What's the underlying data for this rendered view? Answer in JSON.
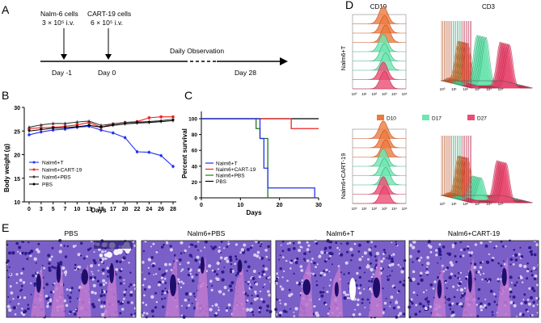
{
  "panels": {
    "A": "A",
    "B": "B",
    "C": "C",
    "D": "D",
    "E": "E"
  },
  "timeline": {
    "nalm_label": "Nalm-6 cells",
    "nalm_dose": "3 × 10⁵ i.v.",
    "cart_label": "CART-19 cells",
    "cart_dose": "6 × 10⁵ i.v.",
    "observation": "Daily Observation",
    "day_m1": "Day -1",
    "day_0": "Day 0",
    "day_28": "Day 28"
  },
  "chart_data": [
    {
      "type": "line",
      "panel": "B",
      "ylabel": "Body weight (g)",
      "xlabel": "Days",
      "ylim": [
        10,
        30
      ],
      "yticks": [
        "10",
        "15",
        "20",
        "25",
        "30"
      ],
      "x": [
        0,
        3,
        5,
        7,
        10,
        13,
        15,
        17,
        20,
        22,
        24,
        26,
        28
      ],
      "xticks": [
        "0",
        "3",
        "5",
        "7",
        "10",
        "13",
        "15",
        "17",
        "20",
        "22",
        "24",
        "26",
        "28"
      ],
      "series": [
        {
          "name": "Nalm6+T",
          "color": "#2233ee",
          "values": [
            24.2,
            24.8,
            25.2,
            25.4,
            25.8,
            26.0,
            25.2,
            24.6,
            23.6,
            20.6,
            20.5,
            19.8,
            17.5
          ]
        },
        {
          "name": "Nalm6+CART-19",
          "color": "#ee2222",
          "values": [
            25.5,
            25.7,
            25.8,
            26.0,
            26.3,
            26.8,
            25.8,
            26.5,
            26.8,
            27.0,
            27.8,
            28.0,
            28.0
          ]
        },
        {
          "name": "Nalm6+PBS",
          "color": "#333333",
          "values": [
            25.8,
            26.3,
            26.6,
            26.6,
            26.9,
            27.1,
            26.2,
            26.5,
            26.8,
            26.9,
            27.0,
            27.2,
            27.5
          ]
        },
        {
          "name": "PBS",
          "color": "#000000",
          "values": [
            25.0,
            25.3,
            25.6,
            25.7,
            25.9,
            26.2,
            25.8,
            26.2,
            26.5,
            26.7,
            26.8,
            27.0,
            27.2
          ]
        }
      ]
    },
    {
      "type": "line",
      "panel": "C",
      "ylabel": "Percent survival",
      "xlabel": "Days",
      "xlim": [
        0,
        30
      ],
      "ylim": [
        0,
        100
      ],
      "xticks": [
        "0",
        "10",
        "20",
        "30"
      ],
      "yticks": [
        "0",
        "20",
        "40",
        "60",
        "80",
        "100"
      ],
      "series": [
        {
          "name": "Nalm6+T",
          "color": "#2233ee",
          "steps": [
            [
              0,
              100
            ],
            [
              15,
              100
            ],
            [
              15,
              75
            ],
            [
              16,
              75
            ],
            [
              16,
              37.5
            ],
            [
              17,
              37.5
            ],
            [
              17,
              12.5
            ],
            [
              29,
              12.5
            ],
            [
              29,
              0
            ]
          ]
        },
        {
          "name": "Nalm6+CART-19",
          "color": "#ee2222",
          "steps": [
            [
              0,
              100
            ],
            [
              23,
              100
            ],
            [
              23,
              87.5
            ],
            [
              30,
              87.5
            ]
          ]
        },
        {
          "name": "Nalm6+PBS",
          "color": "#227722",
          "steps": [
            [
              0,
              100
            ],
            [
              14,
              100
            ],
            [
              14,
              87.5
            ],
            [
              15,
              87.5
            ],
            [
              15,
              75
            ],
            [
              17,
              75
            ],
            [
              17,
              0
            ]
          ]
        },
        {
          "name": "PBS",
          "color": "#000000",
          "steps": [
            [
              0,
              100
            ],
            [
              30,
              100
            ]
          ]
        }
      ]
    }
  ],
  "flow": {
    "cd19": "CD19",
    "cd3": "CD3",
    "row1": "Nalm6+T",
    "row2": "Nalm6+CART-19",
    "xticks": [
      "10⁰",
      "10¹",
      "10²",
      "10³",
      "10⁴",
      "10⁵"
    ],
    "legend": [
      {
        "label": "D10",
        "color": "#ec7a3f"
      },
      {
        "label": "D17",
        "color": "#6ee6b0"
      },
      {
        "label": "D27",
        "color": "#ea4d73"
      }
    ]
  },
  "histology": {
    "titles": [
      "PBS",
      "Nalm6+PBS",
      "Nalm6+T",
      "Nalm6+CART-19"
    ]
  }
}
